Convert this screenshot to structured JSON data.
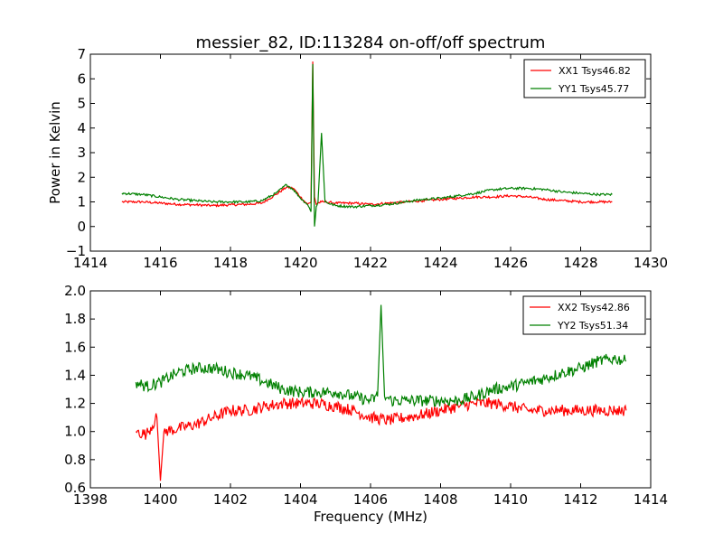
{
  "figure": {
    "title": "messier_82, ID:113284 on-off/off spectrum",
    "xlabel": "Frequency (MHz)",
    "colors": {
      "xx": "#ff0000",
      "yy": "#008000",
      "axis": "#000000"
    }
  },
  "chart_data": [
    {
      "type": "line",
      "title": "messier_82, ID:113284 on-off/off spectrum",
      "ylabel": "Power in Kelvin",
      "xlabel": "",
      "xlim": [
        1414,
        1430
      ],
      "ylim": [
        -1,
        7
      ],
      "xticks": [
        1414,
        1416,
        1418,
        1420,
        1422,
        1424,
        1426,
        1428,
        1430
      ],
      "yticks": [
        -1,
        0,
        1,
        2,
        3,
        4,
        5,
        6,
        7
      ],
      "legend": "top-right",
      "series": [
        {
          "name": "XX1 Tsys46.82",
          "color": "#ff0000",
          "x": [
            1414.9,
            1415.5,
            1416.0,
            1416.5,
            1417.0,
            1417.5,
            1418.0,
            1418.5,
            1418.9,
            1419.3,
            1419.6,
            1419.8,
            1420.0,
            1420.2,
            1420.3,
            1420.35,
            1420.4,
            1420.45,
            1420.5,
            1420.6,
            1420.7,
            1421.0,
            1421.5,
            1422.0,
            1422.5,
            1423.0,
            1423.5,
            1424.0,
            1424.5,
            1425.0,
            1425.5,
            1426.0,
            1426.5,
            1427.0,
            1427.5,
            1428.0,
            1428.5,
            1428.9
          ],
          "y": [
            1.0,
            1.0,
            0.95,
            0.9,
            0.88,
            0.85,
            0.88,
            0.9,
            0.95,
            1.3,
            1.6,
            1.55,
            1.2,
            0.9,
            1.0,
            6.7,
            1.2,
            0.9,
            0.95,
            1.0,
            1.0,
            0.95,
            0.95,
            0.9,
            0.95,
            1.0,
            1.05,
            1.1,
            1.15,
            1.2,
            1.2,
            1.25,
            1.2,
            1.1,
            1.05,
            1.0,
            1.0,
            1.0
          ]
        },
        {
          "name": "YY1 Tsys45.77",
          "color": "#008000",
          "x": [
            1414.9,
            1415.5,
            1416.0,
            1416.5,
            1417.0,
            1417.5,
            1418.0,
            1418.5,
            1418.9,
            1419.3,
            1419.6,
            1419.8,
            1420.0,
            1420.2,
            1420.3,
            1420.35,
            1420.4,
            1420.45,
            1420.5,
            1420.6,
            1420.7,
            1421.0,
            1421.5,
            1422.0,
            1422.5,
            1423.0,
            1423.5,
            1424.0,
            1424.5,
            1425.0,
            1425.5,
            1426.0,
            1426.5,
            1427.0,
            1427.5,
            1428.0,
            1428.5,
            1428.9
          ],
          "y": [
            1.35,
            1.3,
            1.2,
            1.1,
            1.05,
            1.0,
            1.0,
            1.0,
            1.05,
            1.35,
            1.7,
            1.5,
            1.15,
            0.9,
            0.6,
            6.6,
            0.0,
            0.8,
            1.0,
            3.8,
            1.0,
            0.85,
            0.8,
            0.85,
            0.9,
            1.0,
            1.1,
            1.15,
            1.25,
            1.35,
            1.5,
            1.55,
            1.55,
            1.5,
            1.4,
            1.35,
            1.3,
            1.3
          ]
        }
      ]
    },
    {
      "type": "line",
      "title": "",
      "ylabel": "",
      "xlabel": "Frequency (MHz)",
      "xlim": [
        1398,
        1414
      ],
      "ylim": [
        0.6,
        2.0
      ],
      "xticks": [
        1398,
        1400,
        1402,
        1404,
        1406,
        1408,
        1410,
        1412,
        1414
      ],
      "yticks": [
        0.6,
        0.8,
        1.0,
        1.2,
        1.4,
        1.6,
        1.8,
        2.0
      ],
      "legend": "top-right",
      "series": [
        {
          "name": "XX2 Tsys42.86",
          "color": "#ff0000",
          "x": [
            1399.3,
            1399.6,
            1399.9,
            1400.0,
            1400.1,
            1400.5,
            1401.0,
            1401.5,
            1402.0,
            1402.5,
            1403.0,
            1403.5,
            1404.0,
            1404.5,
            1405.0,
            1405.5,
            1406.0,
            1406.5,
            1407.0,
            1407.5,
            1408.0,
            1408.5,
            1409.0,
            1409.5,
            1410.0,
            1410.5,
            1411.0,
            1411.5,
            1412.0,
            1412.5,
            1413.0,
            1413.3
          ],
          "y": [
            1.0,
            0.98,
            1.1,
            0.65,
            1.0,
            1.02,
            1.05,
            1.1,
            1.15,
            1.15,
            1.18,
            1.2,
            1.2,
            1.2,
            1.18,
            1.15,
            1.1,
            1.08,
            1.1,
            1.12,
            1.15,
            1.18,
            1.2,
            1.2,
            1.18,
            1.15,
            1.15,
            1.15,
            1.15,
            1.15,
            1.15,
            1.15
          ]
        },
        {
          "name": "YY2 Tsys51.34",
          "color": "#008000",
          "x": [
            1399.3,
            1399.6,
            1400.0,
            1400.5,
            1401.0,
            1401.5,
            1402.0,
            1402.5,
            1403.0,
            1403.5,
            1404.0,
            1404.5,
            1405.0,
            1405.5,
            1406.0,
            1406.2,
            1406.3,
            1406.4,
            1406.6,
            1407.0,
            1407.5,
            1408.0,
            1408.5,
            1409.0,
            1409.5,
            1410.0,
            1410.5,
            1411.0,
            1411.5,
            1412.0,
            1412.5,
            1413.0,
            1413.3
          ],
          "y": [
            1.35,
            1.32,
            1.35,
            1.42,
            1.45,
            1.45,
            1.42,
            1.4,
            1.35,
            1.3,
            1.28,
            1.28,
            1.28,
            1.25,
            1.22,
            1.25,
            1.9,
            1.25,
            1.22,
            1.22,
            1.22,
            1.22,
            1.22,
            1.25,
            1.3,
            1.32,
            1.35,
            1.38,
            1.42,
            1.45,
            1.5,
            1.52,
            1.5
          ]
        }
      ]
    }
  ]
}
